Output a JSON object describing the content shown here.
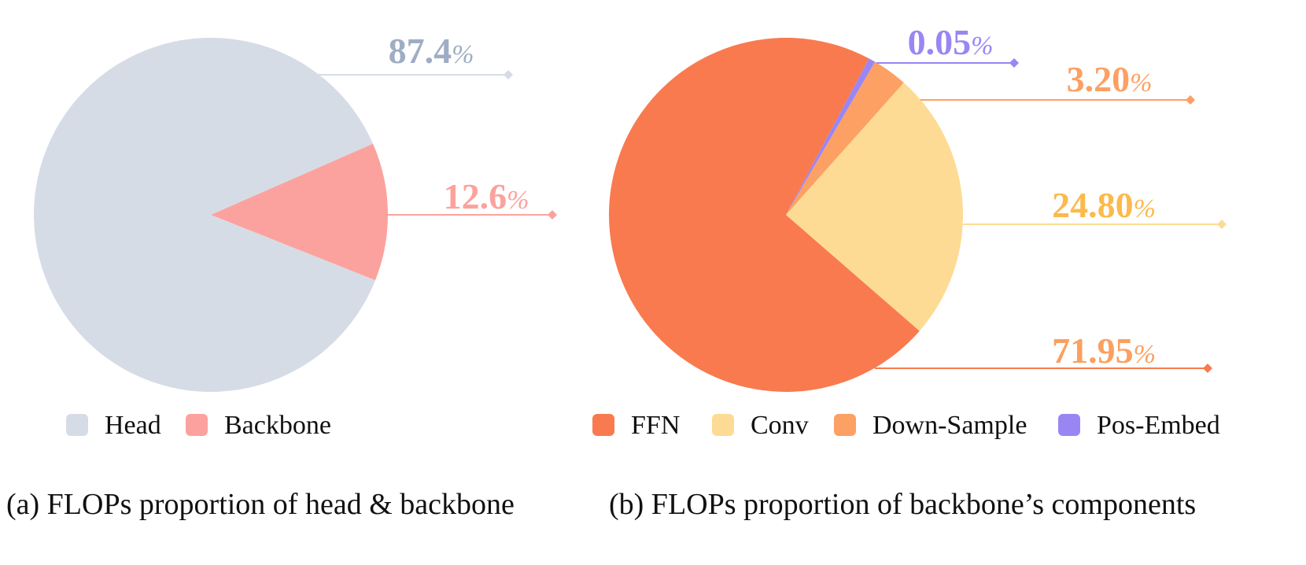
{
  "chart_data": [
    {
      "type": "pie",
      "caption": "(a) FLOPs proportion of head & backbone",
      "slices": [
        {
          "label": "Head",
          "value": 87.4,
          "display": "87.4",
          "color": "#d6dce6",
          "text_color": "#9fadc4"
        },
        {
          "label": "Backbone",
          "value": 12.6,
          "display": "12.6",
          "color": "#fca29e",
          "text_color": "#fca29e"
        }
      ],
      "percent_sign": "%",
      "legend": [
        "Head",
        "Backbone"
      ],
      "legend_position": "bottom"
    },
    {
      "type": "pie",
      "caption": "(b) FLOPs proportion of backbone’s components",
      "slices": [
        {
          "label": "FFN",
          "value": 71.95,
          "display": "71.95",
          "color": "#f97a4f",
          "text_color": "#fba05f"
        },
        {
          "label": "Conv",
          "value": 24.8,
          "display": "24.80",
          "color": "#fedb94",
          "text_color": "#fcba4c"
        },
        {
          "label": "Down-Sample",
          "value": 3.2,
          "display": "3.20",
          "color": "#fca064",
          "text_color": "#fca064"
        },
        {
          "label": "Pos-Embed",
          "value": 0.05,
          "display": "0.05",
          "color": "#9a86f3",
          "text_color": "#9a86f3"
        }
      ],
      "percent_sign": "%",
      "legend": [
        "FFN",
        "Conv",
        "Down-Sample",
        "Pos-Embed"
      ],
      "legend_position": "bottom"
    }
  ]
}
